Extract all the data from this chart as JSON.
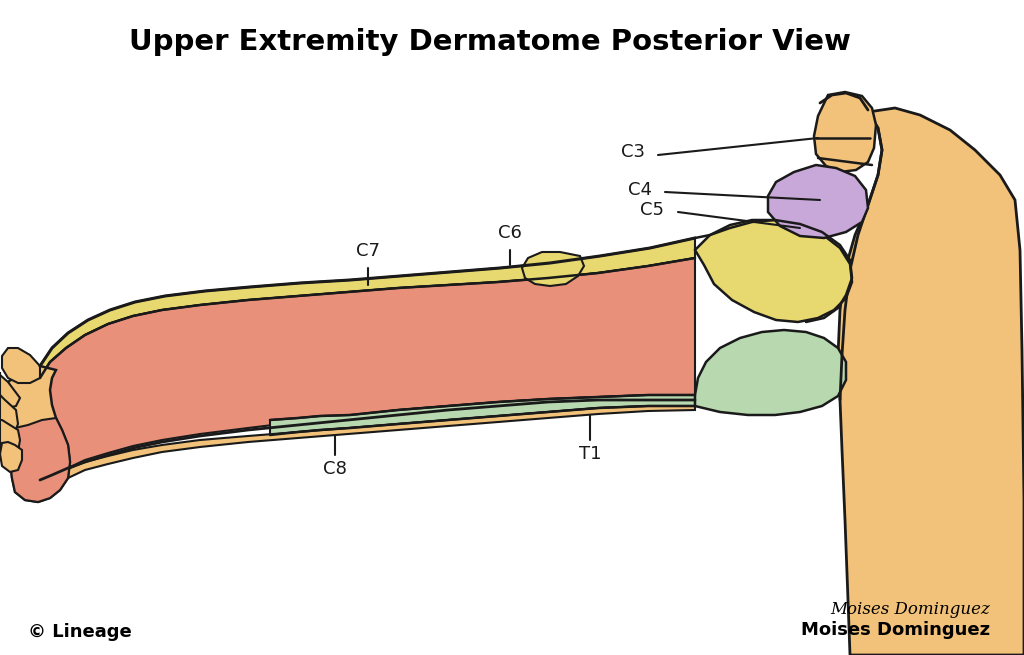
{
  "title": "Upper Extremity Dermatome Posterior View",
  "title_fontsize": 21,
  "title_fontweight": "bold",
  "bg_color": "#ffffff",
  "skin_color": "#F2C27A",
  "skin_light": "#F5D090",
  "C4_color": "#C8A8D8",
  "C5_color": "#E8D870",
  "C6_color": "#E8D870",
  "C8_color": "#E8907A",
  "T1_color": "#B8D8B0",
  "outline_color": "#1a1a1a",
  "label_color": "#1a1a1a",
  "label_fontsize": 13,
  "credit_left": "© Lineage",
  "credit_right": "Moises Dominguez",
  "credit_fontsize": 13,
  "sig_fontsize": 12
}
